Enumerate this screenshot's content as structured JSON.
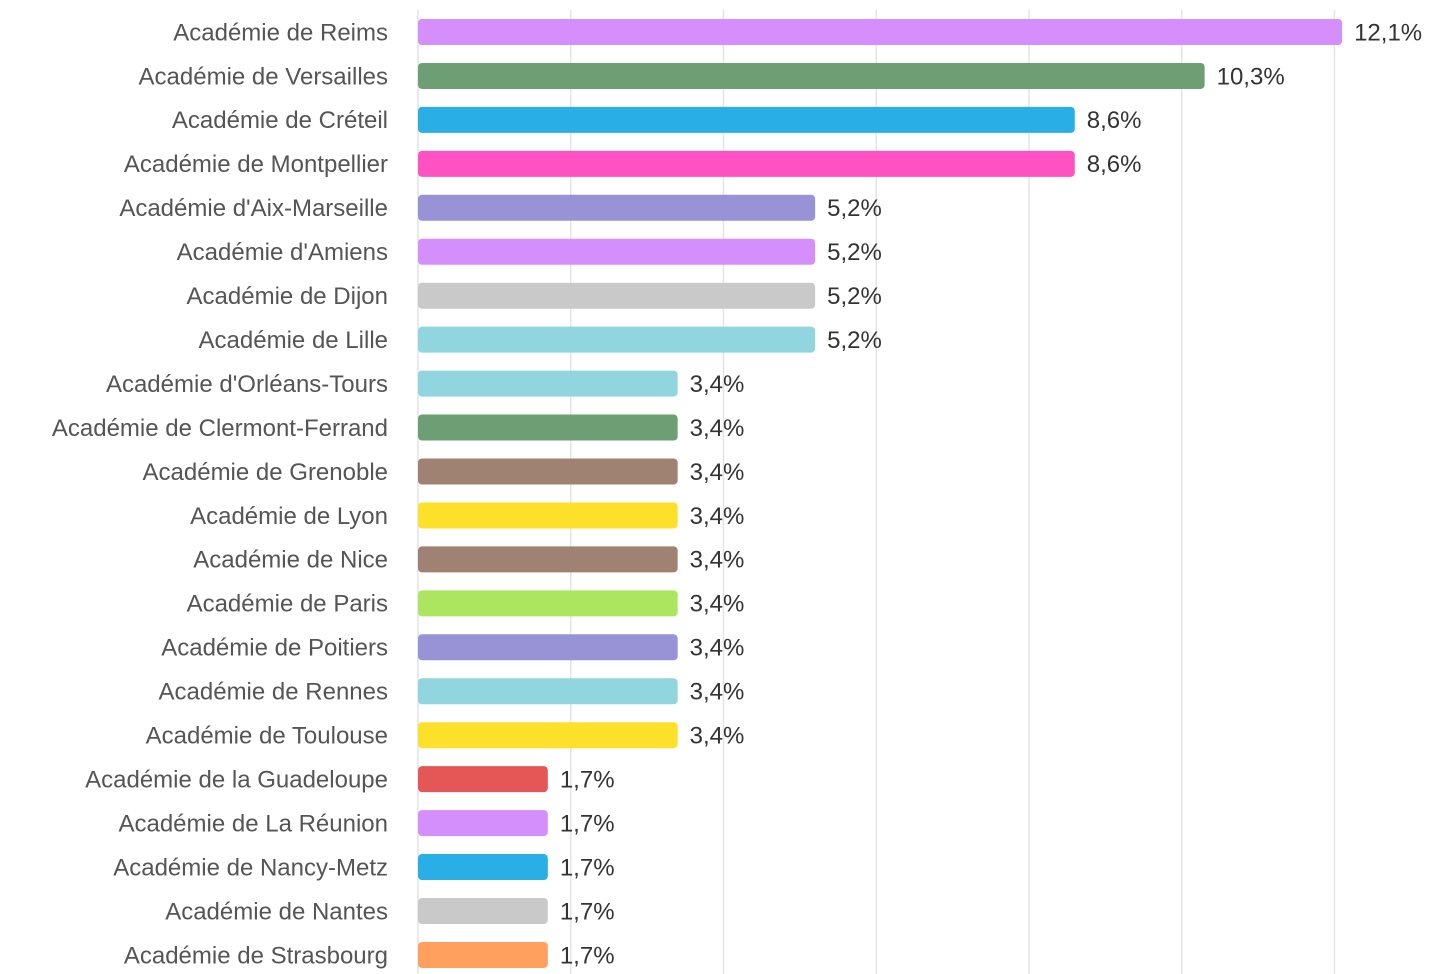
{
  "chart_data": {
    "type": "bar",
    "orientation": "horizontal",
    "categories": [
      "Académie de Reims",
      "Académie de Versailles",
      "Académie de Créteil",
      "Académie de Montpellier",
      "Académie d'Aix-Marseille",
      "Académie d'Amiens",
      "Académie de Dijon",
      "Académie de Lille",
      "Académie d'Orléans-Tours",
      "Académie de Clermont-Ferrand",
      "Académie de Grenoble",
      "Académie de Lyon",
      "Académie de Nice",
      "Académie de Paris",
      "Académie de Poitiers",
      "Académie de Rennes",
      "Académie de Toulouse",
      "Académie de la Guadeloupe",
      "Académie de La Réunion",
      "Académie de Nancy-Metz",
      "Académie de Nantes",
      "Académie de Strasbourg"
    ],
    "values": [
      12.1,
      10.3,
      8.6,
      8.6,
      5.2,
      5.2,
      5.2,
      5.2,
      3.4,
      3.4,
      3.4,
      3.4,
      3.4,
      3.4,
      3.4,
      3.4,
      3.4,
      1.7,
      1.7,
      1.7,
      1.7,
      1.7
    ],
    "value_labels": [
      "12,1%",
      "10,3%",
      "8,6%",
      "8,6%",
      "5,2%",
      "5,2%",
      "5,2%",
      "5,2%",
      "3,4%",
      "3,4%",
      "3,4%",
      "3,4%",
      "3,4%",
      "3,4%",
      "3,4%",
      "3,4%",
      "3,4%",
      "1,7%",
      "1,7%",
      "1,7%",
      "1,7%",
      "1,7%"
    ],
    "colors": [
      "#d58ffc",
      "#6e9e74",
      "#29aee6",
      "#ff52c2",
      "#9892d6",
      "#d58ffc",
      "#c9c9c9",
      "#91d5de",
      "#91d5de",
      "#6e9e74",
      "#a08272",
      "#fde02a",
      "#a08272",
      "#ace560",
      "#9892d6",
      "#91d5de",
      "#fde02a",
      "#e55757",
      "#d58ffc",
      "#29aee6",
      "#c9c9c9",
      "#ffa05e"
    ],
    "xlim": [
      0,
      12.4
    ],
    "xticks": [
      0,
      2,
      4,
      6,
      8,
      10,
      12
    ],
    "grid": true
  }
}
